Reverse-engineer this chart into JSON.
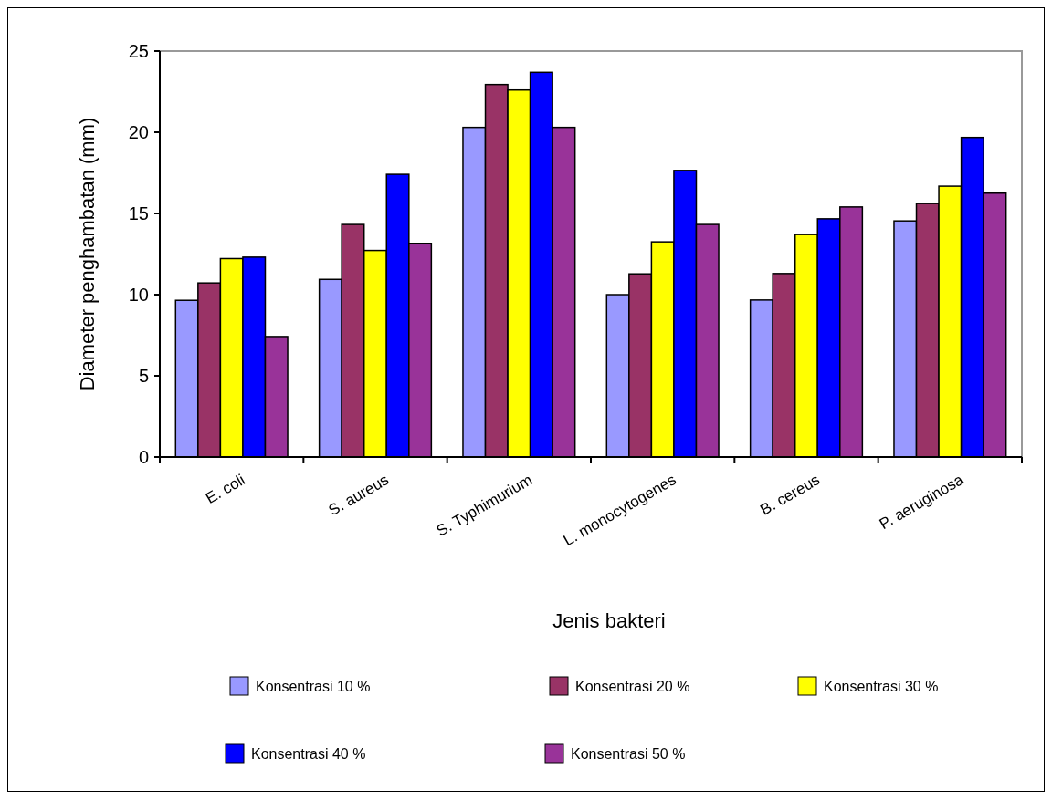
{
  "chart_data": {
    "type": "bar",
    "xlabel": "Jenis bakteri",
    "ylabel": "Diameter penghambatan (mm)",
    "categories": [
      "E. coli",
      "S. aureus",
      "S. Typhimurium",
      "L. monocytogenes",
      "B. cereus",
      "P. aeruginosa"
    ],
    "series": [
      {
        "name": "Konsentrasi 10 %",
        "color": "#9999ff",
        "values": [
          9.65,
          10.94,
          20.3,
          10.0,
          9.67,
          14.54
        ]
      },
      {
        "name": "Konsentrasi 20 %",
        "color": "#993366",
        "values": [
          10.72,
          14.32,
          22.94,
          11.28,
          11.3,
          15.61
        ]
      },
      {
        "name": "Konsentrasi 30 %",
        "color": "#ffff00",
        "values": [
          12.22,
          12.72,
          22.6,
          13.25,
          13.7,
          16.68
        ]
      },
      {
        "name": "Konsentrasi 40 %",
        "color": "#0000ff",
        "values": [
          12.31,
          17.41,
          23.69,
          17.65,
          14.67,
          19.68
        ]
      },
      {
        "name": "Konsentrasi 50 %",
        "color": "#993399",
        "values": [
          7.42,
          13.16,
          20.3,
          14.32,
          15.4,
          16.25
        ]
      }
    ],
    "ylim": [
      0,
      25
    ],
    "yticks": [
      0,
      5,
      10,
      15,
      20,
      25
    ],
    "legend": "bottom"
  }
}
